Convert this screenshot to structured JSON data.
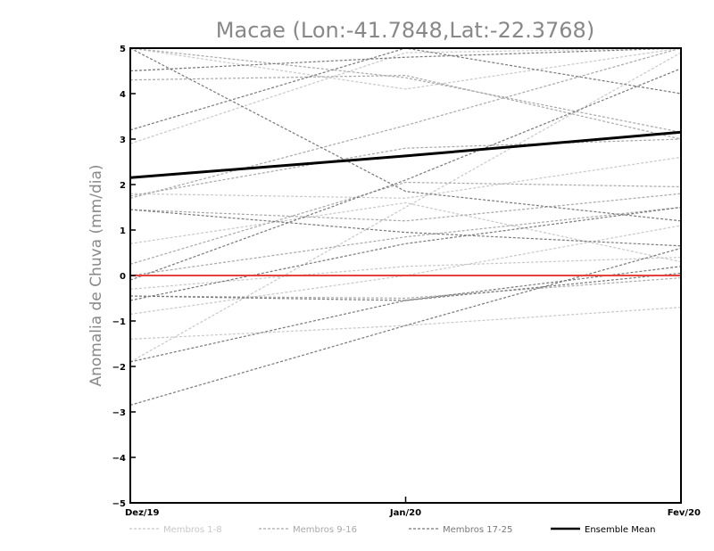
{
  "chart_data": {
    "type": "line",
    "title": "Macae (Lon:-41.7848,Lat:-22.3768)",
    "xlabel": "",
    "ylabel": "Anomalia de Chuva (mm/dia)",
    "categories": [
      "Dez/19",
      "Jan/20",
      "Fev/20"
    ],
    "ylim": [
      -5,
      5
    ],
    "yticks": [
      -5,
      -4,
      -3,
      -2,
      -1,
      0,
      1,
      2,
      3,
      4,
      5
    ],
    "grid": false,
    "legend": "bottom",
    "reference_line": {
      "value": 0,
      "color": "#e8413c"
    },
    "groups": [
      {
        "name": "Membros 1-8",
        "color": "#c8c8c8",
        "dash": "dashed"
      },
      {
        "name": "Membros 9-16",
        "color": "#a8a8a8",
        "dash": "dashed"
      },
      {
        "name": "Membros 17-25",
        "color": "#787878",
        "dash": "dashed"
      },
      {
        "name": "Ensemble Mean",
        "color": "#000000",
        "dash": "solid"
      }
    ],
    "series": [
      {
        "group": 0,
        "values": [
          2.9,
          4.9,
          5.0
        ]
      },
      {
        "group": 0,
        "values": [
          1.8,
          1.7,
          2.6
        ]
      },
      {
        "group": 0,
        "values": [
          0.7,
          1.6,
          0.3
        ]
      },
      {
        "group": 0,
        "values": [
          -0.3,
          0.2,
          0.4
        ]
      },
      {
        "group": 0,
        "values": [
          -0.85,
          0.0,
          1.1
        ]
      },
      {
        "group": 0,
        "values": [
          -1.4,
          -1.1,
          -0.7
        ]
      },
      {
        "group": 0,
        "values": [
          -1.9,
          1.5,
          4.9
        ]
      },
      {
        "group": 0,
        "values": [
          5.0,
          4.1,
          5.0
        ]
      },
      {
        "group": 1,
        "values": [
          4.3,
          4.4,
          3.0
        ]
      },
      {
        "group": 1,
        "values": [
          1.7,
          3.3,
          5.0
        ]
      },
      {
        "group": 1,
        "values": [
          1.45,
          1.2,
          1.8
        ]
      },
      {
        "group": 1,
        "values": [
          0.0,
          0.85,
          1.5
        ]
      },
      {
        "group": 1,
        "values": [
          -0.45,
          -0.5,
          -0.05
        ]
      },
      {
        "group": 1,
        "values": [
          1.75,
          2.8,
          3.0
        ]
      },
      {
        "group": 1,
        "values": [
          0.25,
          2.05,
          1.95
        ]
      },
      {
        "group": 1,
        "values": [
          5.0,
          4.35,
          3.15
        ]
      },
      {
        "group": 2,
        "values": [
          4.5,
          4.8,
          5.0
        ]
      },
      {
        "group": 2,
        "values": [
          5.0,
          1.85,
          1.2
        ]
      },
      {
        "group": 2,
        "values": [
          -2.85,
          -1.1,
          0.6
        ]
      },
      {
        "group": 2,
        "values": [
          -1.9,
          -0.55,
          0.2
        ]
      },
      {
        "group": 2,
        "values": [
          -0.55,
          0.7,
          1.5
        ]
      },
      {
        "group": 2,
        "values": [
          -0.1,
          2.1,
          4.55
        ]
      },
      {
        "group": 2,
        "values": [
          1.45,
          0.95,
          0.65
        ]
      },
      {
        "group": 2,
        "values": [
          -0.45,
          -0.55,
          0.05
        ]
      },
      {
        "group": 2,
        "values": [
          3.2,
          5.0,
          4.0
        ]
      },
      {
        "group": 3,
        "values": [
          2.15,
          2.63,
          3.15
        ]
      }
    ]
  }
}
